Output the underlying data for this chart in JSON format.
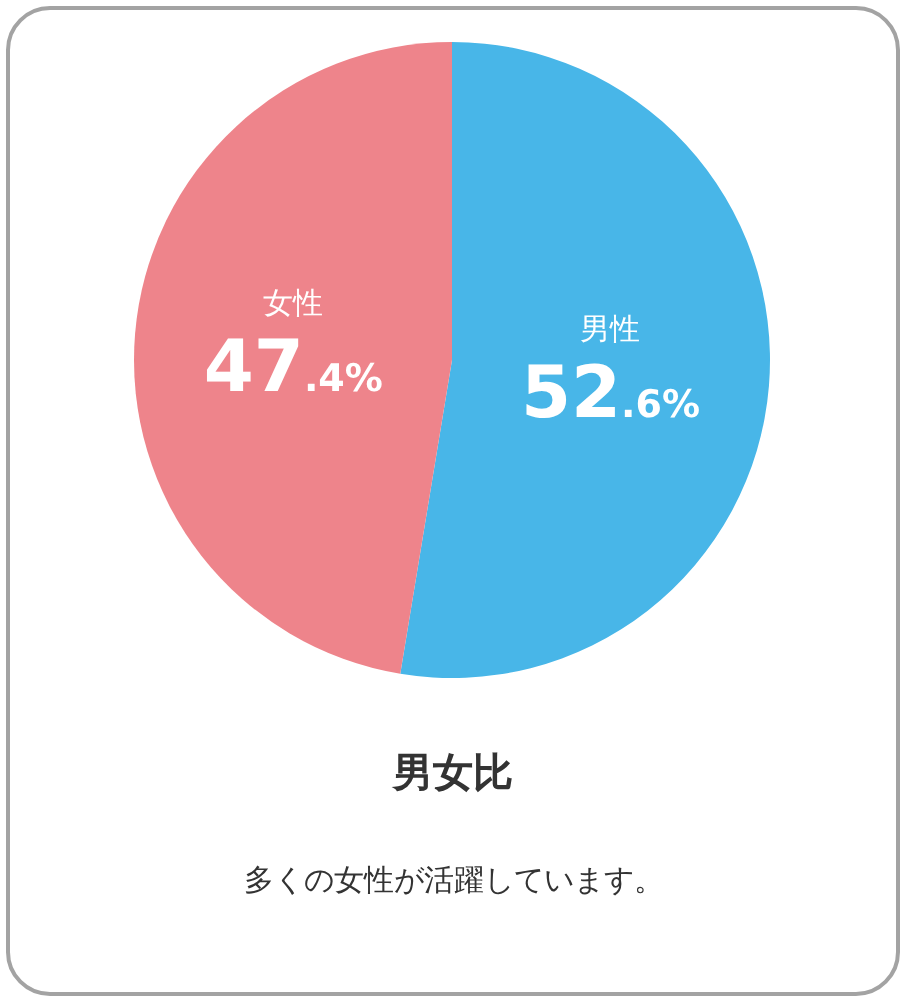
{
  "chart_data": {
    "type": "pie",
    "title": "男女比",
    "subtitle": "多くの女性が活躍しています。",
    "categories": [
      "男性",
      "女性"
    ],
    "values": [
      52.6,
      47.4
    ],
    "value_labels": [
      "52.6%",
      "47.4%"
    ],
    "colors": [
      "#48b6e8",
      "#ee848b"
    ],
    "legend": false
  }
}
